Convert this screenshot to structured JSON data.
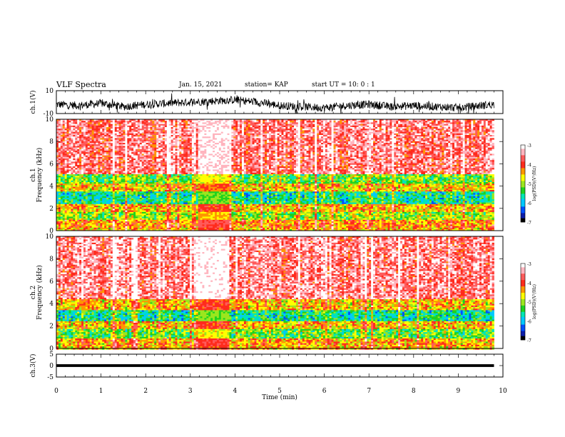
{
  "header": {
    "title": "VLF Spectra",
    "date": "Jan. 15, 2021",
    "station": "station= KAP",
    "start": "start  UT =   10: 0  : 1"
  },
  "colors": {
    "palette": [
      "#000000",
      "#0b1ca8",
      "#0050ff",
      "#00c8ff",
      "#00e6b4",
      "#1fd21f",
      "#9be61e",
      "#ffff00",
      "#ff9600",
      "#ff2b1c",
      "#ff5a5a",
      "#ffb4be",
      "#ffffff"
    ],
    "waveform": "#000000"
  },
  "chart_data": [
    {
      "type": "line",
      "id": "ch1-waveform",
      "ylabel": "ch.1(V)",
      "ylim": [
        -10,
        10
      ],
      "y_ticks": [
        "10",
        "-10"
      ],
      "x": [
        0,
        0.5,
        1,
        1.5,
        2,
        2.5,
        3,
        3.5,
        4,
        4.5,
        5,
        5.5,
        6,
        6.5,
        7,
        7.5,
        8,
        8.5,
        9,
        9.5,
        9.8
      ],
      "values": [
        -2,
        -3,
        -1,
        -4,
        -2,
        -1,
        0,
        1,
        2,
        0,
        -3,
        -4,
        -5,
        -3,
        -2,
        -4,
        -3,
        -4,
        -5,
        -3,
        -2
      ],
      "xlim": [
        0,
        10
      ]
    },
    {
      "type": "heatmap",
      "id": "ch1-spectrogram",
      "ylabel": "ch.1\nFrequency (kHz)",
      "xlim": [
        0,
        10
      ],
      "ylim": [
        0,
        10
      ],
      "y_ticks": [
        "0",
        "2",
        "4",
        "6",
        "8",
        "10"
      ],
      "time_range_min": [
        0,
        9.8
      ],
      "colorbar": {
        "label": "log(PSD)(V²/Hz)",
        "range": [
          -7,
          -3
        ],
        "ticks": [
          "-3",
          "-4",
          "-5",
          "-6",
          "-7"
        ]
      },
      "freq_bands_khz": [
        [
          0,
          0.3
        ],
        [
          0.3,
          1.0
        ],
        [
          1.0,
          1.8
        ],
        [
          1.8,
          2.5
        ],
        [
          2.5,
          3.6
        ],
        [
          3.6,
          4.3
        ],
        [
          4.3,
          5.2
        ],
        [
          5.2,
          10
        ]
      ],
      "band_log_psd": [
        -4.5,
        -4.3,
        -5.0,
        -4.5,
        -5.6,
        -4.6,
        -5.2,
        -3.6
      ],
      "disturbed_interval_min": [
        3.15,
        3.85
      ]
    },
    {
      "type": "heatmap",
      "id": "ch2-spectrogram",
      "ylabel": "ch.2\nFrequency (kHz)",
      "xlim": [
        0,
        10
      ],
      "ylim": [
        0,
        10
      ],
      "y_ticks": [
        "0",
        "2",
        "4",
        "6",
        "8",
        "10"
      ],
      "time_range_min": [
        0,
        9.8
      ],
      "colorbar": {
        "label": "log(PSD)(V²/Hz)",
        "range": [
          -7,
          -3
        ],
        "ticks": [
          "-3",
          "-4",
          "-5",
          "-6",
          "-7"
        ]
      },
      "freq_bands_khz": [
        [
          0,
          0.3
        ],
        [
          0.3,
          1.0
        ],
        [
          1.0,
          1.8
        ],
        [
          1.8,
          2.5
        ],
        [
          2.5,
          3.5
        ],
        [
          3.5,
          4.5
        ],
        [
          4.5,
          10
        ]
      ],
      "band_log_psd": [
        -4.5,
        -4.4,
        -5.2,
        -4.5,
        -5.6,
        -4.5,
        -3.5
      ],
      "disturbed_interval_min": [
        3.15,
        3.85
      ]
    },
    {
      "type": "line",
      "id": "ch3-waveform",
      "ylabel": "ch.3(V)",
      "ylim": [
        -5,
        5
      ],
      "y_ticks": [
        "5",
        "0",
        "-5"
      ],
      "x": [
        0,
        9.8
      ],
      "values": [
        0,
        0
      ],
      "trace_band_v": [
        -0.6,
        0.6
      ],
      "xlim": [
        0,
        10
      ],
      "xlabel": "Time (min)",
      "x_ticks": [
        "0",
        "1",
        "2",
        "3",
        "4",
        "5",
        "6",
        "7",
        "8",
        "9",
        "10"
      ]
    }
  ]
}
